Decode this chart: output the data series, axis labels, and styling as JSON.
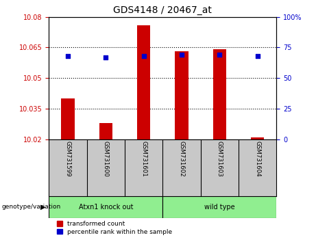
{
  "title": "GDS4148 / 20467_at",
  "samples": [
    "GSM731599",
    "GSM731600",
    "GSM731601",
    "GSM731602",
    "GSM731603",
    "GSM731604"
  ],
  "transformed_counts": [
    10.04,
    10.028,
    10.076,
    10.063,
    10.064,
    10.021
  ],
  "percentile_ranks": [
    68,
    67,
    68,
    69,
    69,
    68
  ],
  "group_labels": [
    "Atxn1 knock out",
    "wild type"
  ],
  "group_ranges": [
    [
      0,
      2
    ],
    [
      3,
      5
    ]
  ],
  "group_color": "#90EE90",
  "ylim_left": [
    10.02,
    10.08
  ],
  "ylim_right": [
    0,
    100
  ],
  "yticks_left": [
    10.02,
    10.035,
    10.05,
    10.065,
    10.08
  ],
  "yticks_right": [
    0,
    25,
    50,
    75,
    100
  ],
  "bar_color": "#CC0000",
  "scatter_color": "#0000CC",
  "bar_base": 10.02,
  "bar_width": 0.35,
  "sample_bg": "#C8C8C8",
  "plot_bg": "#FFFFFF",
  "legend_labels": [
    "transformed count",
    "percentile rank within the sample"
  ],
  "group_x_label": "genotype/variation"
}
